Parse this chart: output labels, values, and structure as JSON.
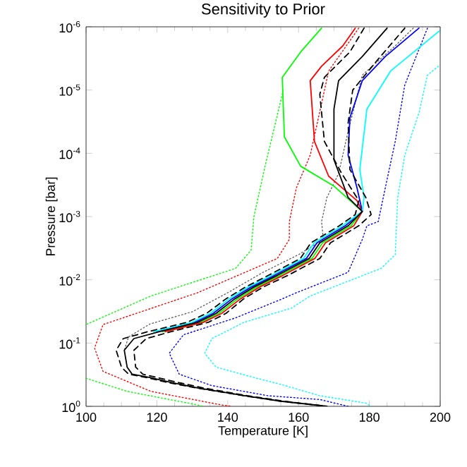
{
  "chart_data": {
    "type": "line",
    "title": "Sensitivity to Prior",
    "xlabel": "Temperature [K]",
    "ylabel": "Pressure [bar]",
    "log": "y",
    "grid": false,
    "xlim": [
      100,
      200
    ],
    "xticks": [
      100,
      120,
      140,
      160,
      180,
      200
    ],
    "ylim": [
      1,
      1e-06
    ],
    "yticks": [
      {
        "value": 1,
        "label": "10$^{0}$"
      },
      {
        "value": 0.1,
        "label": "10$^{-1}$"
      },
      {
        "value": 0.01,
        "label": "10$^{-2}$"
      },
      {
        "value": 0.001,
        "label": "10$^{-3}$"
      },
      {
        "value": 0.0001,
        "label": "10$^{-4}$"
      },
      {
        "value": 1e-05,
        "label": "10$^{-5}$"
      },
      {
        "value": 1e-06,
        "label": "10$^{-6}$"
      }
    ],
    "series": [
      {
        "color": "#00ff00",
        "line_style": "dotted",
        "x": [
          155.6,
          155.4,
          150.6,
          147.4,
          146.6,
          142.2,
          118.3,
          100,
          null,
          100,
          111.6,
          131.5,
          133
        ],
        "values": [
          1e-05,
          1.17e-05,
          0.000155,
          0.001,
          0.0034,
          0.0066,
          0.018,
          0.051,
          null,
          0.36,
          0.58,
          0.95,
          1
        ]
      },
      {
        "color": "#ff0000",
        "line_style": "dotted",
        "x": [
          177,
          168.5,
          165.3,
          163.3,
          159.4,
          157.4,
          157.4,
          154,
          131.5,
          104.8,
          102.4,
          104.8,
          118.3,
          138.2,
          141
        ],
        "values": [
          1.05e-06,
          5e-06,
          3.3e-05,
          0.000107,
          0.00035,
          0.0012,
          0.0023,
          0.0046,
          0.016,
          0.051,
          0.12,
          0.28,
          0.58,
          0.95,
          1
        ]
      },
      {
        "color": "#0000ff",
        "line_style": "dotted",
        "x": [
          196.4,
          190,
          187.3,
          184.5,
          182.5,
          179.3,
          178,
          174,
          159.4,
          155.4,
          142.2,
          127.5,
          123.5,
          126.3,
          135.5,
          151.4,
          166,
          174
        ],
        "values": [
          1.05e-06,
          8.3e-06,
          6.5e-05,
          0.00035,
          0.0012,
          0.0014,
          0.0023,
          0.0076,
          0.016,
          0.02,
          0.04,
          0.074,
          0.145,
          0.31,
          0.47,
          0.68,
          0.78,
          1
        ]
      },
      {
        "color": "#00ffff",
        "line_style": "dotted",
        "x": [
          199.5,
          196.4,
          194,
          190,
          188,
          187.3,
          183.3,
          163.3,
          158,
          144.6,
          135.5,
          133.5,
          136.7,
          147.4,
          155,
          166,
          179,
          180.5
        ],
        "values": [
          4.2e-06,
          5.8e-06,
          2.3e-05,
          0.000107,
          0.0005,
          0.004,
          0.0066,
          0.018,
          0.028,
          0.047,
          0.085,
          0.145,
          0.24,
          0.35,
          0.45,
          0.68,
          0.89,
          1
        ]
      },
      {
        "color": "#666666",
        "line_style": "dotted",
        "x": [
          192.4,
          187.3,
          178,
          174,
          171.3,
          168,
          166.5,
          167,
          160,
          150,
          140,
          130,
          118,
          112,
          110.8
        ],
        "values": [
          1.05e-06,
          2e-06,
          5.8e-06,
          4.5e-05,
          0.00021,
          0.0005,
          0.0012,
          0.0023,
          0.004,
          0.0076,
          0.016,
          0.032,
          0.05,
          0.08,
          0.13
        ]
      },
      {
        "color": "#00ff00",
        "line_style": "solid",
        "x": [
          166.5,
          160.6,
          155.4,
          156,
          160.6,
          170,
          178,
          174.8,
          166.8,
          163.8,
          154.8,
          148.2,
          142.8,
          137.5,
          132.3,
          121.5
        ],
        "values": [
          1.05e-06,
          2.5e-06,
          6.3e-06,
          5.5e-05,
          0.00016,
          0.00033,
          0.00083,
          0.0014,
          0.0026,
          0.0046,
          0.0085,
          0.013,
          0.02,
          0.034,
          0.047,
          0.066
        ]
      },
      {
        "color": "#ff0000",
        "line_style": "solid",
        "x": [
          176,
          172.5,
          166.5,
          163.3,
          164.5,
          168.5,
          176.5,
          178,
          175.6,
          167.6,
          164.6,
          155.6,
          149,
          143.6,
          138.3,
          133.1,
          122.3
        ],
        "values": [
          1.05e-06,
          2e-06,
          4.2e-06,
          7.1e-06,
          6.5e-05,
          0.00023,
          0.00056,
          0.00083,
          0.0014,
          0.0026,
          0.0046,
          0.0085,
          0.013,
          0.02,
          0.034,
          0.047,
          0.066
        ]
      },
      {
        "color": "#0000ff",
        "line_style": "solid",
        "x": [
          194,
          184.5,
          178,
          174.5,
          174,
          176.5,
          178,
          173.2,
          165.2,
          162.2,
          153.2,
          146.6,
          141.2,
          135.9,
          130.7,
          119.9
        ],
        "values": [
          1.05e-06,
          2.95e-06,
          7.1e-06,
          2.75e-05,
          0.000107,
          0.00035,
          0.00083,
          0.0014,
          0.0026,
          0.0046,
          0.0085,
          0.013,
          0.02,
          0.034,
          0.047,
          0.066
        ]
      },
      {
        "color": "#00ffff",
        "line_style": "solid",
        "x": [
          199.7,
          186,
          179.3,
          177.3,
          178.5,
          178,
          172.4,
          164.4,
          161.4,
          152.4,
          145.8,
          140.4,
          135.1,
          129.9,
          119.1
        ],
        "values": [
          1.17e-06,
          5e-06,
          2e-05,
          0.00018,
          0.0005,
          0.00083,
          0.0014,
          0.0026,
          0.0046,
          0.0085,
          0.013,
          0.02,
          0.034,
          0.047,
          0.066
        ]
      },
      {
        "color": "#000000",
        "line_style": "dashed",
        "x": [
          178.5,
          174.5,
          167.3,
          166,
          167.3,
          172,
          177,
          176,
          171.5,
          163.5,
          160.5,
          151.5,
          145,
          139.5,
          134,
          128.5,
          117.5,
          110.5,
          108.5,
          110,
          112,
          117,
          123,
          131,
          144.5,
          155,
          168
        ],
        "values": [
          1.05e-06,
          2.5e-06,
          6.3e-06,
          1.17e-05,
          6.5e-05,
          0.0002,
          0.00056,
          0.00093,
          0.0014,
          0.0026,
          0.0046,
          0.0085,
          0.013,
          0.02,
          0.034,
          0.047,
          0.066,
          0.085,
          0.13,
          0.24,
          0.31,
          0.35,
          0.42,
          0.51,
          0.68,
          0.83,
          1
        ]
      },
      {
        "color": "#000000",
        "line_style": "dashed",
        "x": [
          190,
          182,
          175.3,
          174,
          174.5,
          179,
          180.5,
          177,
          169,
          166,
          157,
          150,
          144.5,
          139.5,
          134.5,
          124,
          117,
          113.5,
          114,
          116,
          120,
          126,
          133,
          145.5,
          156,
          168
        ],
        "values": [
          1.05e-06,
          3.5e-06,
          1e-05,
          3.3e-05,
          0.00018,
          0.0005,
          0.00093,
          0.0014,
          0.0026,
          0.0046,
          0.0085,
          0.013,
          0.02,
          0.034,
          0.047,
          0.066,
          0.085,
          0.13,
          0.24,
          0.31,
          0.35,
          0.42,
          0.51,
          0.68,
          0.83,
          1
        ]
      },
      {
        "color": "#000000",
        "line_style": "solid",
        "x": [
          185,
          178,
          171.3,
          170,
          170,
          174,
          178,
          174,
          166,
          163,
          154,
          147.4,
          142,
          136.7,
          131.5,
          120.7,
          113.5,
          110.8,
          111.6,
          113,
          118,
          124,
          131.5,
          144.7,
          155,
          168
        ],
        "values": [
          1.05e-06,
          2.95e-06,
          7.1e-06,
          2e-05,
          0.000126,
          0.0005,
          0.00083,
          0.0014,
          0.0026,
          0.0046,
          0.0085,
          0.013,
          0.02,
          0.034,
          0.047,
          0.066,
          0.085,
          0.13,
          0.24,
          0.31,
          0.35,
          0.42,
          0.51,
          0.68,
          0.83,
          1
        ]
      }
    ]
  }
}
